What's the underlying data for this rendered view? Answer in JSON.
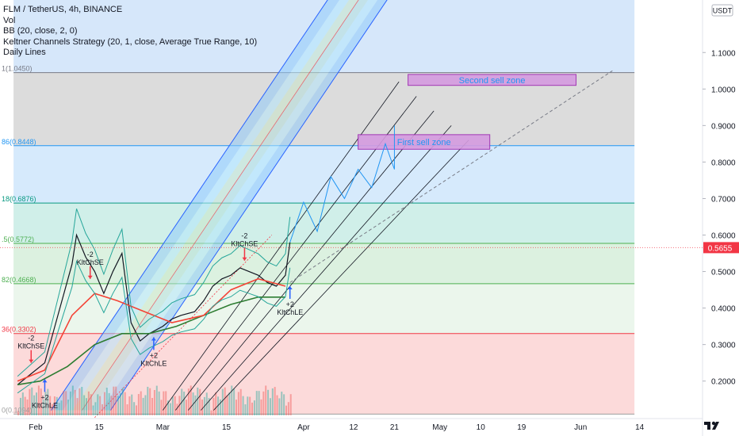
{
  "legend": {
    "title": "FLM / TetherUS, 4h, BINANCE",
    "lines": [
      "Vol",
      "BB (20, close, 2, 0)",
      "Keltner Channels Strategy (20, 1, close, Average True Range, 10)",
      "Daily Lines"
    ]
  },
  "currency_badge": "USDT",
  "colors": {
    "fib_1": "#d6d6d6",
    "fib_786": "#cfe6fb",
    "fib_618": "#c8ece5",
    "fib_5": "#d6efda",
    "fib_382": "#e8f5e9",
    "fib_0": "#fbd3d3",
    "price_tag": "#f23645",
    "keltner": "#26a69a",
    "bb_line": "#f44336",
    "sell_zone": "#d59be0"
  },
  "chart_data": {
    "type": "line",
    "title": "FLM / TetherUS, 4h, BINANCE",
    "y_axis": {
      "ticks": [
        0.2,
        0.3,
        0.4,
        0.5,
        0.6,
        0.7,
        0.8,
        0.9,
        1.0,
        1.1
      ],
      "tick_labels": [
        "0.2000",
        "0.3000",
        "0.4000",
        "0.5000",
        "0.6000",
        "0.7000",
        "0.8000",
        "0.9000",
        "1.0000",
        "1.1000"
      ],
      "range": [
        0.1,
        1.2
      ]
    },
    "x_axis": {
      "tick_labels": [
        "Feb",
        "15",
        "Mar",
        "15",
        "Apr",
        "12",
        "21",
        "May",
        "10",
        "19",
        "Jun",
        "14"
      ],
      "range": [
        "2021-01-28",
        "2021-06-18"
      ]
    },
    "last_price": {
      "value": 0.5655,
      "label": "0.5655"
    },
    "fib_levels": [
      {
        "label": "1(1.0450)",
        "value": 1.045
      },
      {
        "label": "86(0.8448)",
        "value": 0.8448
      },
      {
        "label": "18(0.6876)",
        "value": 0.6876
      },
      {
        "label": ".5(0.5772)",
        "value": 0.5772
      },
      {
        "label": "82(0.4668)",
        "value": 0.4668
      },
      {
        "label": "36(0.3302)",
        "value": 0.3302
      },
      {
        "label": "0(0.1094)",
        "value": 0.1094
      }
    ],
    "sell_zones": [
      {
        "label": "Second sell zone",
        "from": "2021-04-24",
        "to": "2021-05-31",
        "low": 1.01,
        "high": 1.04
      },
      {
        "label": "First sell zone",
        "from": "2021-04-13",
        "to": "2021-05-12",
        "low": 0.835,
        "high": 0.875
      }
    ],
    "signals": [
      {
        "label": "KltChSE",
        "count": "-2",
        "date": "2021-01-31",
        "price": 0.25,
        "dir": "down"
      },
      {
        "label": "KltChLE",
        "count": "+2",
        "date": "2021-02-03",
        "price": 0.205,
        "dir": "up"
      },
      {
        "label": "KltChSE",
        "count": "-2",
        "date": "2021-02-13",
        "price": 0.48,
        "dir": "down"
      },
      {
        "label": "KltChLE",
        "count": "+2",
        "date": "2021-02-27",
        "price": 0.32,
        "dir": "up"
      },
      {
        "label": "KltChSE",
        "count": "-2",
        "date": "2021-03-19",
        "price": 0.53,
        "dir": "down"
      },
      {
        "label": "KltChLE",
        "count": "+2",
        "date": "2021-03-29",
        "price": 0.46,
        "dir": "up"
      }
    ],
    "series": [
      {
        "x": [
          "2021-01-28",
          "2021-01-31",
          "2021-02-03",
          "2021-02-05",
          "2021-02-07",
          "2021-02-09",
          "2021-02-10",
          "2021-02-12",
          "2021-02-14",
          "2021-02-16",
          "2021-02-18",
          "2021-02-20",
          "2021-02-22",
          "2021-02-24",
          "2021-02-26",
          "2021-03-01",
          "2021-03-03",
          "2021-03-05",
          "2021-03-08",
          "2021-03-10",
          "2021-03-12",
          "2021-03-14",
          "2021-03-16",
          "2021-03-18",
          "2021-03-20",
          "2021-03-22",
          "2021-03-24",
          "2021-03-26",
          "2021-03-28",
          "2021-03-29"
        ],
        "values": [
          0.19,
          0.22,
          0.25,
          0.34,
          0.43,
          0.52,
          0.6,
          0.54,
          0.5,
          0.44,
          0.5,
          0.55,
          0.36,
          0.31,
          0.33,
          0.35,
          0.37,
          0.38,
          0.39,
          0.42,
          0.46,
          0.48,
          0.49,
          0.51,
          0.5,
          0.49,
          0.47,
          0.46,
          0.49,
          0.58
        ]
      },
      {
        "x": [
          "2021-01-28",
          "2021-02-02",
          "2021-02-08",
          "2021-02-14",
          "2021-02-20",
          "2021-02-26",
          "2021-03-04",
          "2021-03-10",
          "2021-03-16",
          "2021-03-22",
          "2021-03-28"
        ],
        "values": [
          0.19,
          0.2,
          0.24,
          0.3,
          0.33,
          0.33,
          0.35,
          0.38,
          0.41,
          0.43,
          0.43
        ]
      },
      {
        "x": [
          "2021-01-28",
          "2021-02-03",
          "2021-02-09",
          "2021-02-14",
          "2021-02-19",
          "2021-02-25",
          "2021-03-03",
          "2021-03-10",
          "2021-03-16",
          "2021-03-22",
          "2021-03-28"
        ],
        "values": [
          0.2,
          0.23,
          0.38,
          0.44,
          0.42,
          0.39,
          0.36,
          0.38,
          0.45,
          0.48,
          0.46
        ]
      }
    ],
    "projection": {
      "x": [
        "2021-03-29",
        "2021-04-01",
        "2021-04-04",
        "2021-04-07",
        "2021-04-10",
        "2021-04-13",
        "2021-04-16",
        "2021-04-19",
        "2021-04-21",
        "2021-04-21"
      ],
      "values": [
        0.58,
        0.69,
        0.61,
        0.76,
        0.7,
        0.78,
        0.73,
        0.85,
        0.78,
        0.9
      ]
    },
    "trend_dashed": {
      "x": [
        "2021-03-29",
        "2021-06-08"
      ],
      "values": [
        0.47,
        1.05
      ]
    }
  }
}
